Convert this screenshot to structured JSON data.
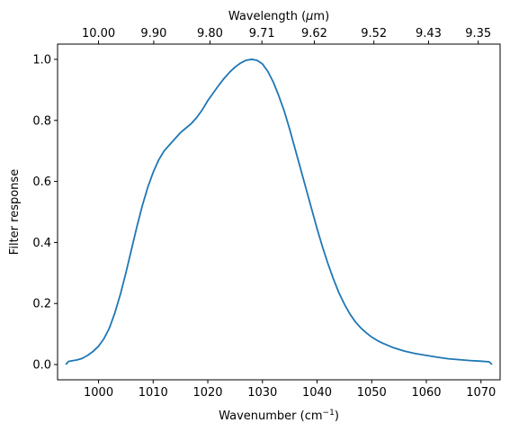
{
  "chart_data": {
    "type": "line",
    "xlabel": "Wavenumber (cm",
    "xlabel_sup": "−1",
    "xlabel_end": ")",
    "ylabel": "Filter response",
    "top_xlabel": "Wavelength (",
    "top_xlabel_mu": "μ",
    "top_xlabel_end": "m)",
    "xlim": [
      992.5,
      1073.5
    ],
    "ylim": [
      -0.05,
      1.05
    ],
    "x_ticks": [
      1000,
      1010,
      1020,
      1030,
      1040,
      1050,
      1060,
      1070
    ],
    "x_tick_labels": [
      "1000",
      "1010",
      "1020",
      "1030",
      "1040",
      "1050",
      "1060",
      "1070"
    ],
    "y_ticks": [
      0.0,
      0.2,
      0.4,
      0.6,
      0.8,
      1.0
    ],
    "y_tick_labels": [
      "0.0",
      "0.2",
      "0.4",
      "0.6",
      "0.8",
      "1.0"
    ],
    "top_ticks": [
      1000.0,
      1010.1,
      1020.4,
      1029.9,
      1039.5,
      1050.4,
      1060.4,
      1069.5
    ],
    "top_tick_labels": [
      "10.00",
      "9.90",
      "9.80",
      "9.71",
      "9.62",
      "9.52",
      "9.43",
      "9.35"
    ],
    "series": [
      {
        "color": "#1f77b4",
        "x": [
          994.0,
          994.5,
          995.0,
          996.0,
          997.0,
          998.0,
          999.0,
          1000.0,
          1001.0,
          1002.0,
          1003.0,
          1004.0,
          1005.0,
          1006.0,
          1007.0,
          1008.0,
          1009.0,
          1010.0,
          1011.0,
          1012.0,
          1013.0,
          1014.0,
          1015.0,
          1016.0,
          1017.0,
          1018.0,
          1019.0,
          1020.0,
          1021.0,
          1022.0,
          1023.0,
          1024.0,
          1025.0,
          1026.0,
          1027.0,
          1028.0,
          1029.0,
          1030.0,
          1031.0,
          1032.0,
          1033.0,
          1034.0,
          1035.0,
          1036.0,
          1037.0,
          1038.0,
          1039.0,
          1040.0,
          1041.0,
          1042.0,
          1043.0,
          1044.0,
          1045.0,
          1046.0,
          1047.0,
          1048.0,
          1049.0,
          1050.0,
          1051.0,
          1052.0,
          1054.0,
          1056.0,
          1058.0,
          1060.0,
          1062.0,
          1064.0,
          1066.0,
          1068.0,
          1070.0,
          1071.5,
          1072.0
        ],
        "y": [
          0.0,
          0.01,
          0.012,
          0.015,
          0.02,
          0.03,
          0.043,
          0.06,
          0.085,
          0.12,
          0.17,
          0.23,
          0.3,
          0.375,
          0.45,
          0.52,
          0.58,
          0.63,
          0.67,
          0.7,
          0.72,
          0.74,
          0.76,
          0.775,
          0.79,
          0.81,
          0.835,
          0.865,
          0.89,
          0.915,
          0.938,
          0.958,
          0.975,
          0.988,
          0.997,
          1.0,
          0.997,
          0.985,
          0.96,
          0.925,
          0.88,
          0.83,
          0.77,
          0.705,
          0.64,
          0.575,
          0.51,
          0.445,
          0.385,
          0.33,
          0.28,
          0.235,
          0.198,
          0.166,
          0.14,
          0.12,
          0.104,
          0.09,
          0.079,
          0.07,
          0.055,
          0.044,
          0.036,
          0.03,
          0.024,
          0.019,
          0.016,
          0.013,
          0.011,
          0.009,
          0.0
        ]
      }
    ]
  }
}
